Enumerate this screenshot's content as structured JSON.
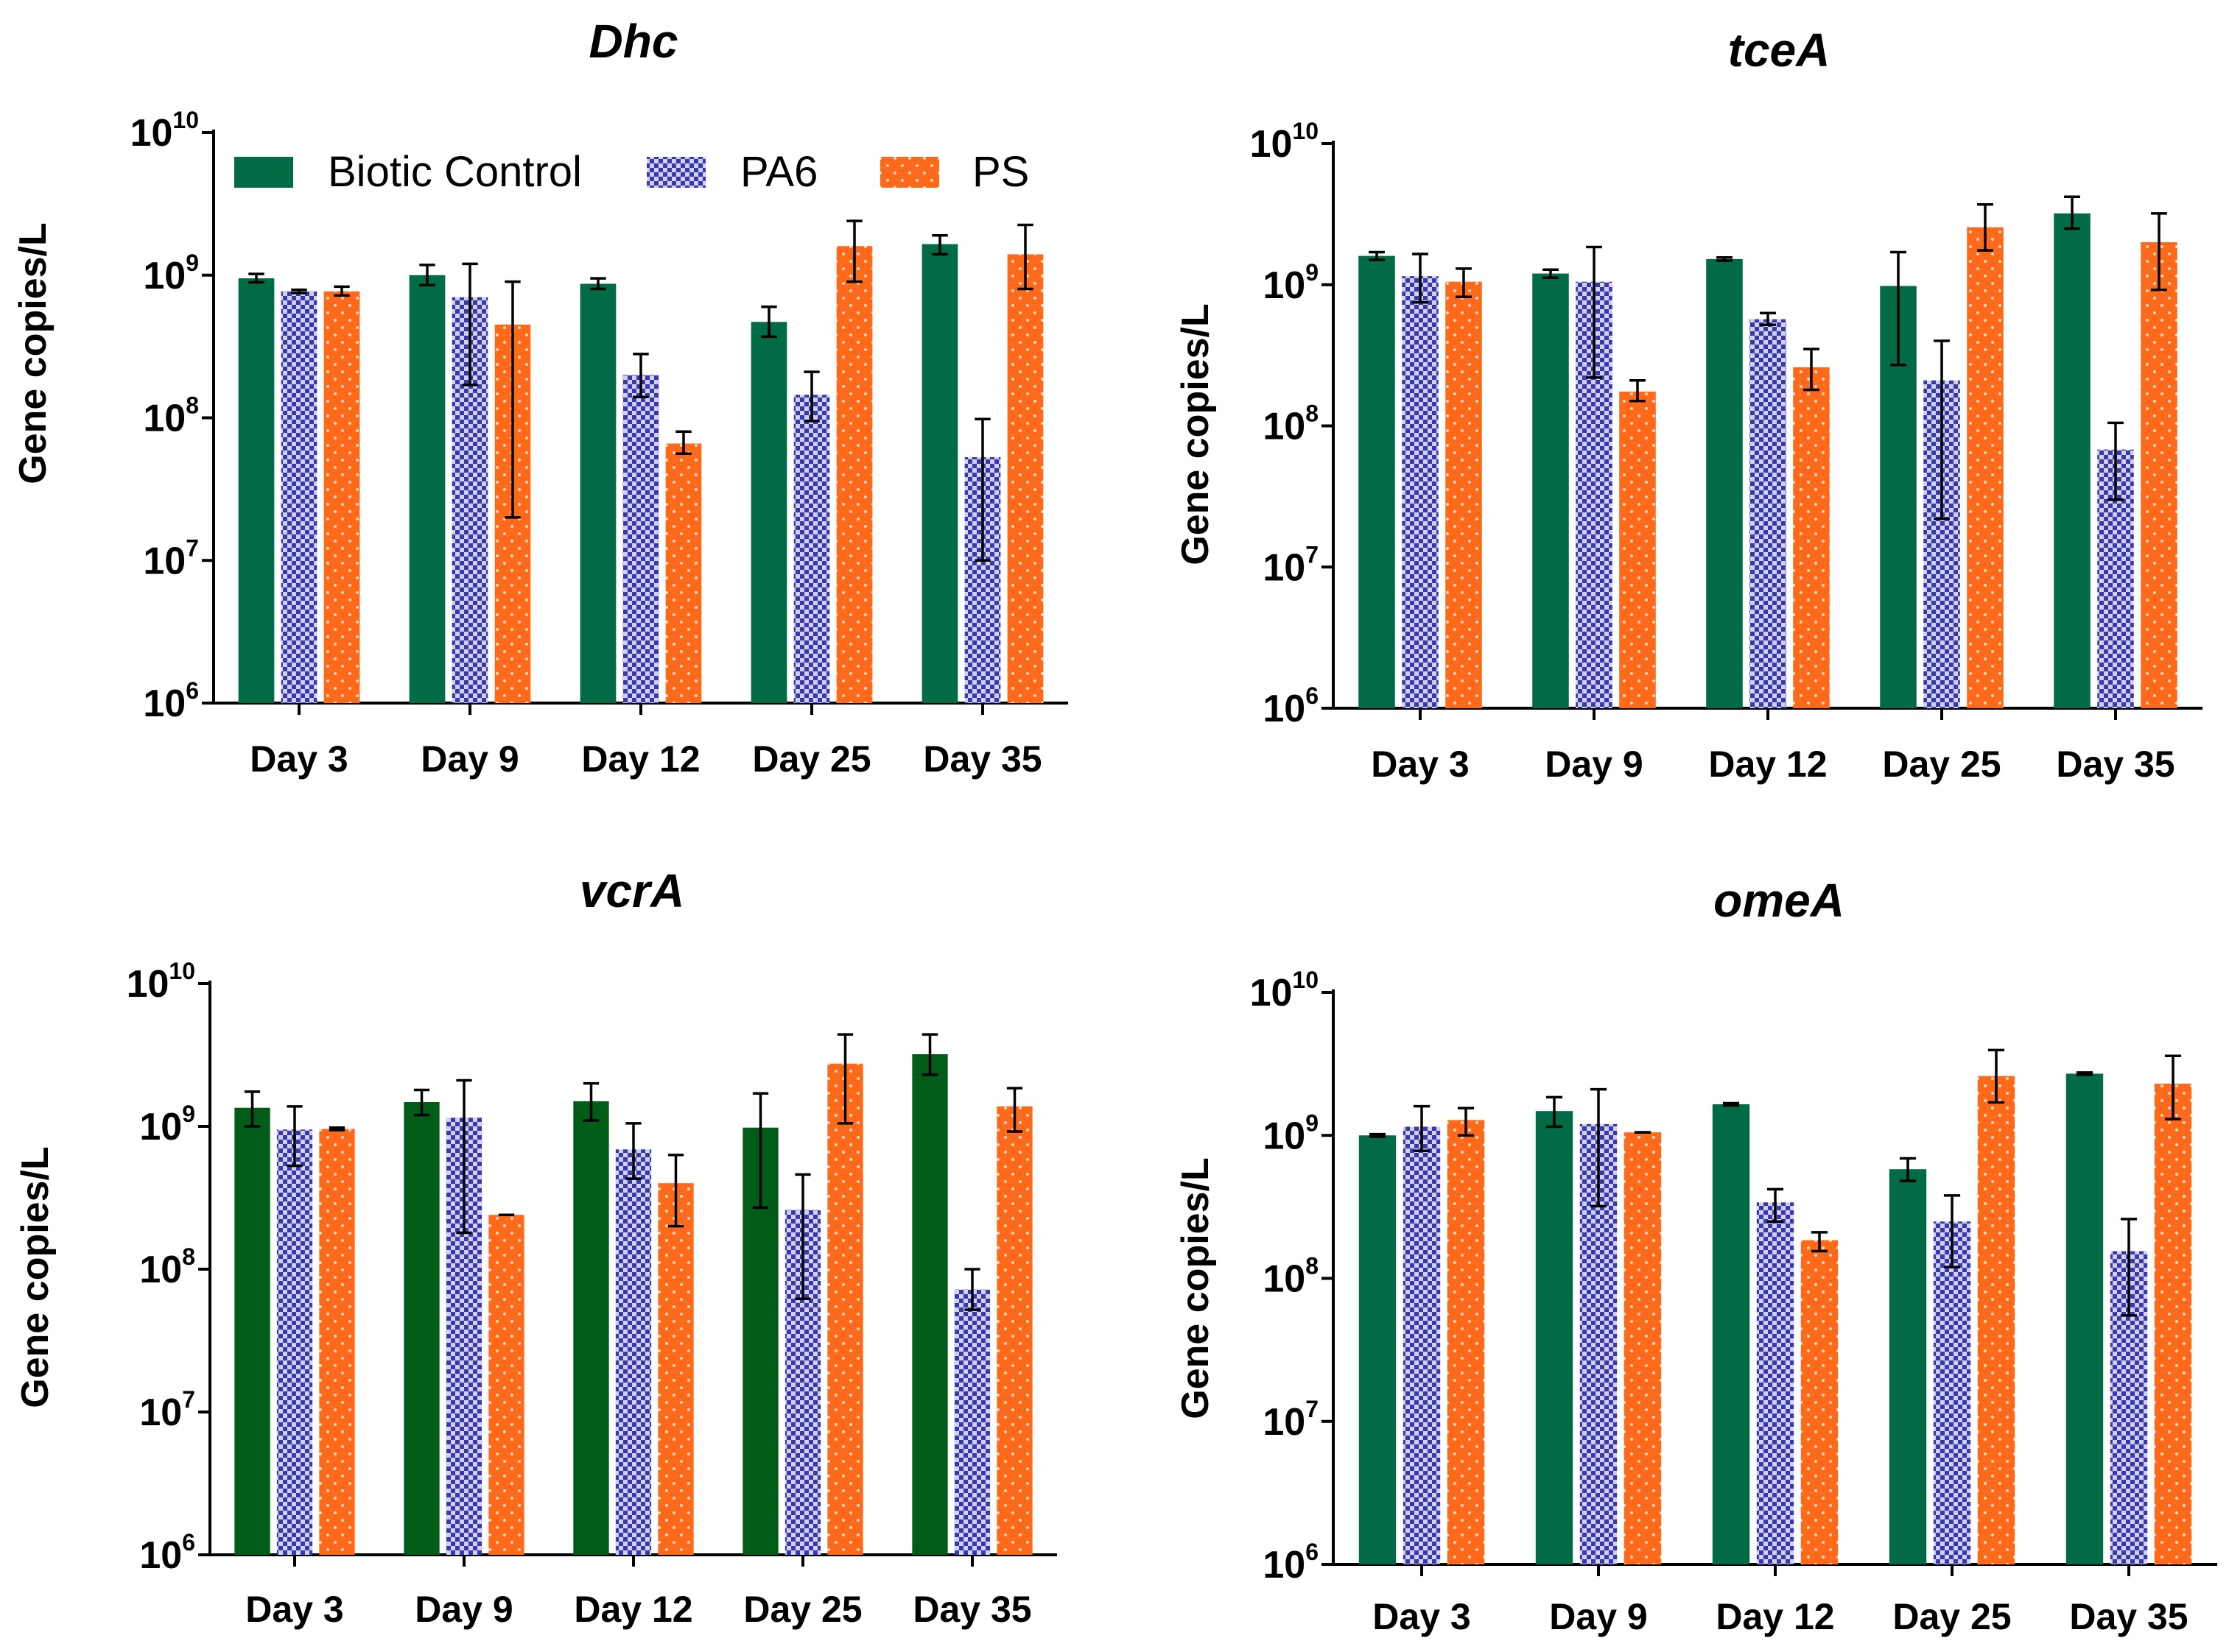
{
  "colors": {
    "biotic_control": "#006b45",
    "biotic_control_vcrA": "#005c16",
    "pa6_base": "#3a3aa6",
    "pa6_light": "#cfd0f4",
    "ps": "#ff6a1a",
    "ps_dot": "#ffd9c0"
  },
  "chart_data": [
    {
      "type": "bar",
      "title": "Dhc",
      "ylabel": "Gene copies/L",
      "yscale": "log10",
      "ylim": [
        1000000,
        10000000000
      ],
      "yticks": [
        {
          "base": "10",
          "exp": "6"
        },
        {
          "base": "10",
          "exp": "7"
        },
        {
          "base": "10",
          "exp": "8"
        },
        {
          "base": "10",
          "exp": "9"
        },
        {
          "base": "10",
          "exp": "10"
        }
      ],
      "categories": [
        "Day 3",
        "Day 9",
        "Day 12",
        "Day 25",
        "Day 35"
      ],
      "legend": [
        "Biotic Control",
        "PA6",
        "PS"
      ],
      "series": [
        {
          "name": "Biotic Control",
          "values": [
            950000000,
            1000000000,
            870000000,
            470000000,
            1650000000
          ],
          "err_low": [
            890000000,
            850000000,
            800000000,
            370000000,
            1400000000
          ],
          "err_high": [
            1020000000,
            1180000000,
            950000000,
            600000000,
            1900000000
          ]
        },
        {
          "name": "PA6",
          "values": [
            770000000,
            700000000,
            200000000,
            145000000,
            53000000
          ],
          "err_low": [
            750000000,
            170000000,
            140000000,
            95000000,
            10000000
          ],
          "err_high": [
            790000000,
            1200000000,
            280000000,
            210000000,
            98000000
          ]
        },
        {
          "name": "PS",
          "values": [
            770000000,
            450000000,
            66000000,
            1600000000,
            1400000000
          ],
          "err_low": [
            720000000,
            20000000,
            56000000,
            900000000,
            800000000
          ],
          "err_high": [
            830000000,
            900000000,
            80000000,
            2400000000,
            2250000000
          ]
        }
      ]
    },
    {
      "type": "bar",
      "title": "tceA",
      "ylabel": "Gene copies/L",
      "yscale": "log10",
      "ylim": [
        1000000,
        10000000000
      ],
      "yticks": [
        {
          "base": "10",
          "exp": "6"
        },
        {
          "base": "10",
          "exp": "7"
        },
        {
          "base": "10",
          "exp": "8"
        },
        {
          "base": "10",
          "exp": "9"
        },
        {
          "base": "10",
          "exp": "10"
        }
      ],
      "categories": [
        "Day 3",
        "Day 9",
        "Day 12",
        "Day 25",
        "Day 35"
      ],
      "legend": [],
      "series": [
        {
          "name": "Biotic Control",
          "values": [
            1600000000,
            1200000000,
            1520000000,
            980000000,
            3200000000
          ],
          "err_low": [
            1500000000,
            1120000000,
            1480000000,
            270000000,
            2500000000
          ],
          "err_high": [
            1700000000,
            1280000000,
            1560000000,
            1700000000,
            4200000000
          ]
        },
        {
          "name": "PA6",
          "values": [
            1150000000,
            1050000000,
            570000000,
            210000000,
            68000000
          ],
          "err_low": [
            750000000,
            220000000,
            520000000,
            22000000,
            30000000
          ],
          "err_high": [
            1650000000,
            1850000000,
            630000000,
            400000000,
            105000000
          ]
        },
        {
          "name": "PS",
          "values": [
            1050000000,
            175000000,
            260000000,
            2550000000,
            2000000000
          ],
          "err_low": [
            820000000,
            150000000,
            180000000,
            1750000000,
            920000000
          ],
          "err_high": [
            1300000000,
            210000000,
            350000000,
            3700000000,
            3200000000
          ]
        }
      ]
    },
    {
      "type": "bar",
      "title": "vcrA",
      "ylabel": "Gene copies/L",
      "yscale": "log10",
      "ylim": [
        1000000,
        10000000000
      ],
      "yticks": [
        {
          "base": "10",
          "exp": "6"
        },
        {
          "base": "10",
          "exp": "7"
        },
        {
          "base": "10",
          "exp": "8"
        },
        {
          "base": "10",
          "exp": "9"
        },
        {
          "base": "10",
          "exp": "10"
        }
      ],
      "categories": [
        "Day 3",
        "Day 9",
        "Day 12",
        "Day 25",
        "Day 35"
      ],
      "legend": [],
      "series": [
        {
          "name": "Biotic Control",
          "values": [
            1350000000,
            1480000000,
            1500000000,
            980000000,
            3200000000
          ],
          "err_low": [
            1000000000,
            1200000000,
            1100000000,
            270000000,
            2300000000
          ],
          "err_high": [
            1750000000,
            1800000000,
            2000000000,
            1700000000,
            4400000000
          ]
        },
        {
          "name": "PA6",
          "values": [
            950000000,
            1150000000,
            690000000,
            260000000,
            72000000
          ],
          "err_low": [
            530000000,
            180000000,
            430000000,
            62000000,
            52000000
          ],
          "err_high": [
            1380000000,
            2100000000,
            1050000000,
            460000000,
            100000000
          ]
        },
        {
          "name": "PS",
          "values": [
            960000000,
            240000000,
            400000000,
            2750000000,
            1380000000
          ],
          "err_low": [
            940000000,
            240000000,
            200000000,
            1050000000,
            920000000
          ],
          "err_high": [
            980000000,
            240000000,
            630000000,
            4400000000,
            1850000000
          ]
        }
      ]
    },
    {
      "type": "bar",
      "title": "omeA",
      "ylabel": "Gene copies/L",
      "yscale": "log10",
      "ylim": [
        1000000,
        10000000000
      ],
      "yticks": [
        {
          "base": "10",
          "exp": "6"
        },
        {
          "base": "10",
          "exp": "7"
        },
        {
          "base": "10",
          "exp": "8"
        },
        {
          "base": "10",
          "exp": "9"
        },
        {
          "base": "10",
          "exp": "10"
        }
      ],
      "categories": [
        "Day 3",
        "Day 9",
        "Day 12",
        "Day 25",
        "Day 35"
      ],
      "legend": [],
      "series": [
        {
          "name": "Biotic Control",
          "values": [
            1000000000,
            1480000000,
            1650000000,
            580000000,
            2700000000
          ],
          "err_low": [
            980000000,
            1150000000,
            1620000000,
            480000000,
            2650000000
          ],
          "err_high": [
            1020000000,
            1850000000,
            1680000000,
            690000000,
            2750000000
          ]
        },
        {
          "name": "PA6",
          "values": [
            1150000000,
            1200000000,
            340000000,
            250000000,
            155000000
          ],
          "err_low": [
            780000000,
            320000000,
            250000000,
            120000000,
            55000000
          ],
          "err_high": [
            1600000000,
            2100000000,
            420000000,
            380000000,
            260000000
          ]
        },
        {
          "name": "PS",
          "values": [
            1280000000,
            1050000000,
            185000000,
            2600000000,
            2300000000
          ],
          "err_low": [
            1000000000,
            1050000000,
            155000000,
            1700000000,
            1300000000
          ],
          "err_high": [
            1550000000,
            1050000000,
            210000000,
            3950000000,
            3600000000
          ]
        }
      ]
    }
  ]
}
